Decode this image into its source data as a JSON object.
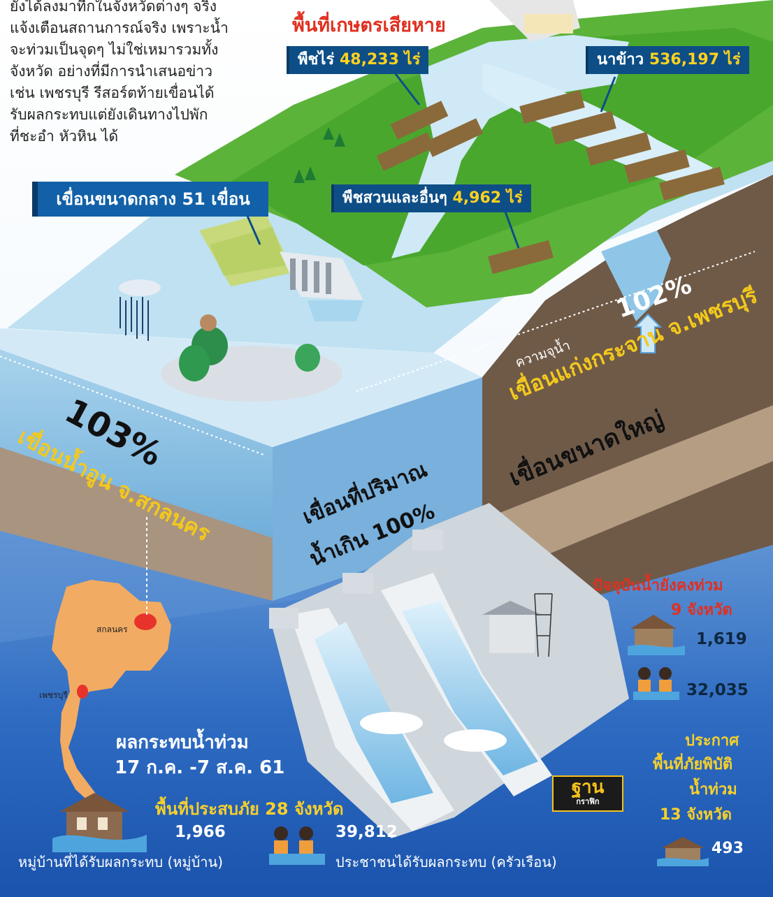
{
  "intro_text": [
    "ยังได้ลงมาทีกในจังหวัดต่างๆ จริง",
    "แจ้งเตือนสถานการณ์จริง เพราะน้ำ",
    "จะท่วมเป็นจุดๆ ไม่ใช่เหมารวมทั้ง",
    "จังหวัด อย่างที่มีการนำเสนอข่าว",
    "เช่น เพชรบุรี รีสอร์ตท้ายเขื่อนได้",
    "รับผลกระทบแต่ยังเดินทางไปพัก",
    "ที่ชะอำ หัวหิน ได้"
  ],
  "damage": {
    "heading": "พื้นที่เกษตรเสียหาย",
    "field_crops": {
      "label": "พืชไร่",
      "value": "48,233 ไร่"
    },
    "rice": {
      "label": "นาข้าว",
      "value": "536,197 ไร่"
    },
    "orchard": {
      "label": "พืชสวนและอื่นๆ",
      "value": "4,962 ไร่"
    }
  },
  "medium_dams": "เขื่อนขนาดกลาง 51 เขื่อน",
  "capacity_label": "ความจุน้ำ",
  "kaengkrachan": {
    "percent": "102%",
    "name": "เขื่อนแก่งกระจาน จ.เพชรบุรี"
  },
  "nam_oon": {
    "percent": "103%",
    "name": "เขื่อนน้ำอูน จ.สกลนคร"
  },
  "over_capacity": [
    "เขื่อนที่ปริมาณ",
    "น้ำเกิน 100%"
  ],
  "large_dams": "เขื่อนขนาดใหญ่",
  "current_flood": {
    "heading": [
      "ปัจจุบันน้ำยังคงท่วม",
      "9 จังหวัด"
    ],
    "houses": "1,619",
    "people": "32,035"
  },
  "declared": {
    "heading": [
      "ประกาศ",
      "พื้นที่ภัยพิบัติ",
      "น้ำท่วม",
      "13 จังหวัด"
    ],
    "houses": "493"
  },
  "impact": {
    "title": [
      "ผลกระทบน้ำท่วม",
      "17 ก.ค. -7 ส.ค. 61"
    ],
    "provinces": "พื้นที่ประสบภัย 28 จังหวัด",
    "villages_value": "1,966",
    "villages_label": "หมู่บ้านที่ได้รับผลกระทบ (หมู่บ้าน)",
    "households_value": "39,812",
    "households_label": "ประชาชนได้รับผลกระทบ (ครัวเรือน)"
  },
  "map": {
    "sakon": "สกลนคร",
    "phetchaburi": "เพชรบุรี"
  },
  "logo": {
    "main": "ฐาน",
    "sub": "กราฟิก"
  },
  "colors": {
    "deep_blue": "#0e4e86",
    "accent_yellow": "#f3c91c",
    "alert_red": "#e03020",
    "land_green": "#5cb33a"
  }
}
